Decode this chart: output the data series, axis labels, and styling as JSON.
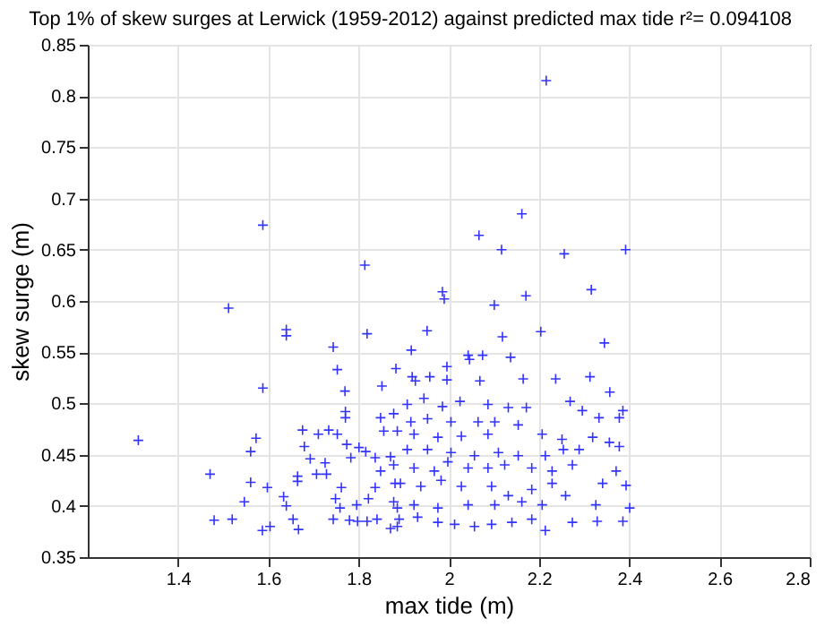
{
  "chart_data": {
    "type": "scatter",
    "title": "Top 1% of skew surges at Lerwick (1959-2012) against predicted max tide r²= 0.094108",
    "xlabel": "max tide (m)",
    "ylabel": "skew surge (m)",
    "xlim": [
      1.2,
      2.8
    ],
    "xticks": [
      1.4,
      1.6,
      1.8,
      2,
      2.2,
      2.4,
      2.6,
      2.8
    ],
    "ylim": [
      0.35,
      0.85
    ],
    "yticks": [
      0.35,
      0.4,
      0.45,
      0.5,
      0.55,
      0.6,
      0.65,
      0.7,
      0.75,
      0.8,
      0.85
    ],
    "grid": true,
    "marker": "cross",
    "series": [
      {
        "color": "#3333ff",
        "x": [
          2.216,
          1.588,
          2.162,
          2.067,
          2.117,
          2.256,
          2.392,
          1.814,
          1.986,
          1.99,
          2.171,
          2.101,
          2.316,
          1.512,
          1.64,
          1.64,
          1.952,
          1.819,
          2.204,
          2.119,
          2.345,
          1.744,
          1.917,
          2.075,
          2.137,
          1.753,
          1.883,
          1.996,
          2.043,
          2.046,
          1.919,
          1.926,
          1.958,
          1.996,
          2.069,
          2.165,
          2.237,
          2.313,
          1.588,
          1.852,
          1.77,
          2.357,
          1.312,
          1.471,
          1.573,
          1.561,
          1.561,
          1.598,
          1.547,
          1.48,
          1.52,
          1.587,
          1.604,
          1.634,
          1.64,
          1.655,
          1.667,
          1.676,
          1.68,
          1.665,
          1.665,
          1.711,
          1.734,
          1.753,
          1.693,
          1.726,
          1.707,
          1.729,
          1.762,
          1.749,
          1.759,
          1.744,
          1.771,
          1.771,
          1.774,
          1.783,
          1.801,
          1.816,
          1.837,
          1.78,
          1.798,
          1.819,
          1.841,
          1.796,
          1.837,
          1.822,
          1.849,
          1.856,
          1.849,
          1.871,
          1.878,
          1.881,
          1.886,
          1.886,
          1.908,
          1.945,
          1.986,
          2.025,
          2.087,
          2.132,
          2.172,
          2.269,
          2.296,
          2.386,
          2.333,
          2.378,
          1.916,
          1.953,
          2.005,
          2.065,
          2.102,
          2.154,
          1.886,
          1.923,
          1.976,
          2.028,
          2.087,
          2.207,
          2.251,
          2.319,
          2.356,
          1.908,
          1.953,
          2.005,
          2.057,
          2.11,
          2.154,
          2.214,
          2.254,
          2.289,
          2.378,
          1.878,
          1.923,
          1.968,
          1.998,
          2.043,
          2.087,
          2.124,
          2.184,
          2.229,
          2.274,
          2.371,
          1.893,
          1.938,
          1.983,
          2.028,
          2.095,
          2.132,
          2.184,
          2.229,
          2.259,
          2.341,
          2.393,
          1.878,
          1.923,
          1.976,
          2.043,
          2.102,
          2.162,
          2.207,
          2.326,
          2.401,
          1.89,
          1.931,
          1.976,
          2.013,
          2.057,
          2.095,
          2.14,
          2.184,
          2.214,
          2.274,
          2.329,
          2.386,
          1.871
        ],
        "values": [
          0.815,
          0.674,
          0.685,
          0.664,
          0.65,
          0.646,
          0.65,
          0.635,
          0.609,
          0.602,
          0.605,
          0.596,
          0.611,
          0.593,
          0.572,
          0.566,
          0.571,
          0.568,
          0.57,
          0.565,
          0.559,
          0.555,
          0.552,
          0.547,
          0.545,
          0.533,
          0.534,
          0.536,
          0.547,
          0.543,
          0.526,
          0.522,
          0.526,
          0.523,
          0.522,
          0.524,
          0.524,
          0.526,
          0.515,
          0.517,
          0.512,
          0.511,
          0.464,
          0.431,
          0.466,
          0.453,
          0.423,
          0.418,
          0.404,
          0.386,
          0.387,
          0.376,
          0.38,
          0.409,
          0.4,
          0.387,
          0.377,
          0.474,
          0.458,
          0.429,
          0.424,
          0.47,
          0.474,
          0.47,
          0.446,
          0.442,
          0.431,
          0.431,
          0.418,
          0.407,
          0.398,
          0.387,
          0.492,
          0.486,
          0.46,
          0.447,
          0.457,
          0.453,
          0.447,
          0.386,
          0.385,
          0.385,
          0.387,
          0.401,
          0.418,
          0.407,
          0.486,
          0.473,
          0.434,
          0.448,
          0.49,
          0.422,
          0.398,
          0.38,
          0.499,
          0.505,
          0.497,
          0.502,
          0.499,
          0.496,
          0.496,
          0.502,
          0.493,
          0.493,
          0.486,
          0.486,
          0.482,
          0.485,
          0.482,
          0.482,
          0.482,
          0.479,
          0.473,
          0.47,
          0.467,
          0.468,
          0.47,
          0.47,
          0.465,
          0.467,
          0.462,
          0.455,
          0.455,
          0.452,
          0.449,
          0.452,
          0.449,
          0.449,
          0.455,
          0.455,
          0.458,
          0.44,
          0.437,
          0.434,
          0.443,
          0.437,
          0.437,
          0.44,
          0.437,
          0.434,
          0.44,
          0.434,
          0.422,
          0.419,
          0.425,
          0.419,
          0.419,
          0.41,
          0.416,
          0.422,
          0.41,
          0.422,
          0.42,
          0.404,
          0.401,
          0.398,
          0.401,
          0.401,
          0.404,
          0.401,
          0.401,
          0.398,
          0.387,
          0.389,
          0.384,
          0.382,
          0.38,
          0.382,
          0.384,
          0.387,
          0.376,
          0.384,
          0.385,
          0.385,
          0.378
        ]
      }
    ]
  }
}
